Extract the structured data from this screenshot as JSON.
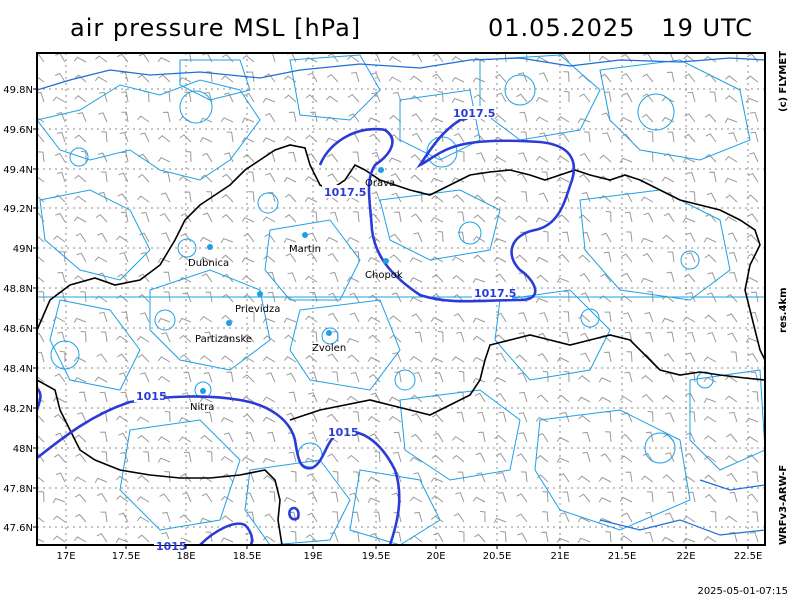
{
  "header": {
    "title": "air pressure MSL [hPa]",
    "valid_time": "01.05.2025   19 UTC"
  },
  "side_labels": {
    "credit": "(c) FLYMET",
    "resolution": "res.4km",
    "model": "WRFv3-ARW-F"
  },
  "footer": {
    "timestamp": "2025-05-01-07:15"
  },
  "axes": {
    "lat_labels": [
      "49.8N",
      "49.6N",
      "49.4N",
      "49.2N",
      "49N",
      "48.8N",
      "48.6N",
      "48.4N",
      "48.2N",
      "48N",
      "47.8N",
      "47.6N"
    ],
    "lon_labels": [
      "17E",
      "17.5E",
      "18E",
      "18.5E",
      "19E",
      "19.5E",
      "20E",
      "20.5E",
      "21E",
      "21.5E",
      "22E",
      "22.5E"
    ]
  },
  "cities": [
    "Orava",
    "Martin",
    "Dubnica",
    "Chopok",
    "Prievidza",
    "Partizanske",
    "Zvolen",
    "Nitra"
  ],
  "isobars": {
    "labels": [
      "1017.5",
      "1017.5",
      "1017.5",
      "1015",
      "1015",
      "1015"
    ]
  },
  "colors": {
    "isobar": "#2a3bd6",
    "contour": "#1ea0e6",
    "border": "#000000",
    "grid": "#888888"
  }
}
